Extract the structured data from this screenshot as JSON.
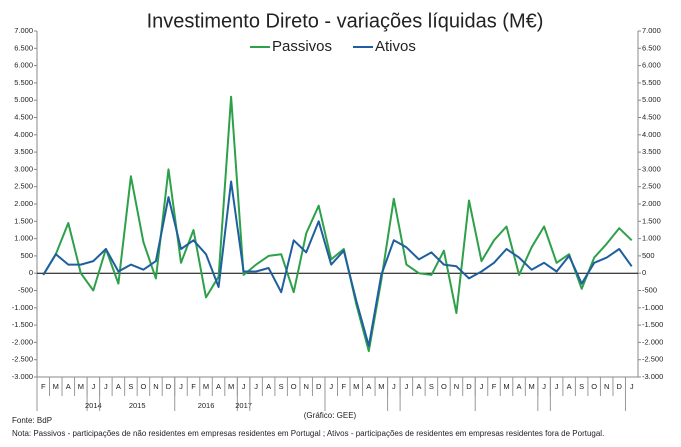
{
  "chart_data": {
    "type": "line",
    "title": "Investimento Direto - variações líquidas (M€)",
    "categories": [
      "F",
      "M",
      "A",
      "M",
      "J",
      "J",
      "A",
      "S",
      "O",
      "N",
      "D",
      "J",
      "F",
      "M",
      "A",
      "M",
      "J",
      "J",
      "A",
      "S",
      "O",
      "N",
      "D",
      "J",
      "F",
      "M",
      "A",
      "M",
      "J",
      "J",
      "A",
      "S",
      "O",
      "N",
      "D",
      "J",
      "F",
      "M",
      "A",
      "M",
      "J",
      "J",
      "A",
      "S",
      "O",
      "N",
      "D",
      "J"
    ],
    "category_groups": [
      null,
      "2014",
      "2015",
      "2016",
      "2017"
    ],
    "series": [
      {
        "name": "Passivos",
        "color": "#2ea04a",
        "values": [
          -50,
          550,
          1450,
          0,
          -500,
          700,
          -300,
          2800,
          900,
          -150,
          3000,
          300,
          1250,
          -700,
          -100,
          5100,
          -50,
          250,
          500,
          550,
          -550,
          1150,
          1950,
          400,
          700,
          -900,
          -2250,
          -200,
          2150,
          250,
          0,
          -50,
          650,
          -1150,
          2100,
          350,
          950,
          1350,
          -50,
          750,
          1350,
          300,
          550,
          -450,
          450,
          850,
          1300,
          950
        ]
      },
      {
        "name": "Ativos",
        "color": "#1f5f9f",
        "values": [
          -50,
          550,
          250,
          250,
          350,
          700,
          50,
          250,
          100,
          350,
          2200,
          700,
          950,
          550,
          -400,
          2650,
          50,
          50,
          150,
          -550,
          950,
          600,
          1500,
          250,
          650,
          -800,
          -2100,
          -50,
          950,
          750,
          400,
          600,
          250,
          200,
          -150,
          50,
          300,
          700,
          450,
          100,
          300,
          50,
          500,
          -300,
          300,
          450,
          700,
          200
        ]
      }
    ],
    "ylim": [
      -3000,
      7000
    ],
    "yticks": [
      {
        "value": -3000,
        "label": "-3.000"
      },
      {
        "value": -2500,
        "label": "-2.500"
      },
      {
        "value": -2000,
        "label": "-2.000"
      },
      {
        "value": -1500,
        "label": "-1.500"
      },
      {
        "value": -1000,
        "label": "-1.000"
      },
      -500,
      0,
      500,
      {
        "value": 1000,
        "label": "1.000"
      },
      {
        "value": 1500,
        "label": "1.500"
      },
      {
        "value": 2000,
        "label": "2.000"
      },
      {
        "value": 2500,
        "label": "2.500"
      },
      {
        "value": 3000,
        "label": "3.000"
      },
      {
        "value": 3500,
        "label": "3.500"
      },
      {
        "value": 4000,
        "label": "4.000"
      },
      {
        "value": 4500,
        "label": "4.500"
      },
      {
        "value": 5000,
        "label": "5.000"
      },
      {
        "value": 5500,
        "label": "5.500"
      },
      {
        "value": 6000,
        "label": "6.000"
      },
      {
        "value": 6500,
        "label": "6.500"
      },
      {
        "value": 7000,
        "label": "7.000"
      }
    ],
    "source": "Fonte: BdP",
    "credit": "(Gráfico: GEE)",
    "note": "Nota: Passivos - participações de não residentes em empresas residentes em Portugal ; Ativos - participações de residentes em empresas residentes fora de Portugal."
  }
}
